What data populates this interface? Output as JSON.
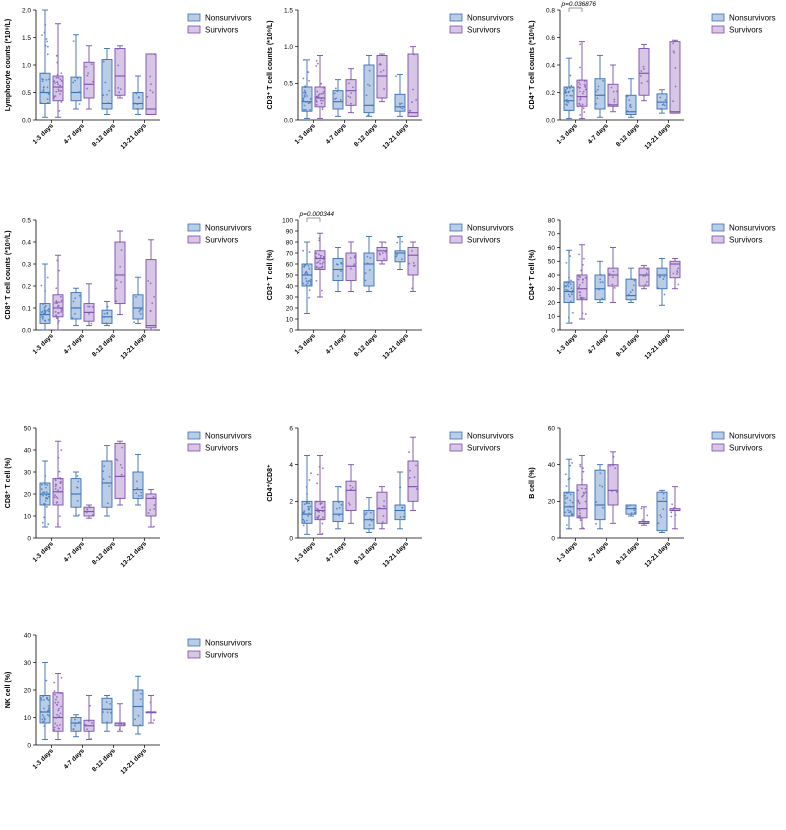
{
  "legend": {
    "nonsurvivors": "Nonsurvivors",
    "survivors": "Survivors"
  },
  "colors": {
    "nonsurvivors_fill": "#b9cde6",
    "nonsurvivors_line": "#3a6fb0",
    "nonsurvivors_dot": "#4a7ec2",
    "survivors_fill": "#d7c6e6",
    "survivors_line": "#7a4fa8",
    "survivors_dot": "#8a62b8"
  },
  "chart_data": [
    {
      "type": "box",
      "ylabel": "Lymphocyte counts (*10⁹/L)",
      "categories": [
        "1-3 days",
        "4-7 days",
        "8-12 days",
        "13-21 days"
      ],
      "ylim": [
        0,
        2
      ],
      "yticks": [
        0,
        0.5,
        1.0,
        1.5,
        2.0
      ],
      "ytick_labels": [
        "0.0",
        "0.5",
        "1.0",
        "1.5",
        "2.0"
      ],
      "annotation": "",
      "series": [
        {
          "name": "Nonsurvivors",
          "boxes": [
            {
              "min": 0.05,
              "q1": 0.3,
              "median": 0.5,
              "q3": 0.85,
              "max": 2.0
            },
            {
              "min": 0.2,
              "q1": 0.35,
              "median": 0.5,
              "q3": 0.78,
              "max": 1.55
            },
            {
              "min": 0.1,
              "q1": 0.2,
              "median": 0.3,
              "q3": 1.1,
              "max": 1.3
            },
            {
              "min": 0.1,
              "q1": 0.2,
              "median": 0.3,
              "q3": 0.5,
              "max": 0.8
            }
          ]
        },
        {
          "name": "Survivors",
          "boxes": [
            {
              "min": 0.05,
              "q1": 0.35,
              "median": 0.6,
              "q3": 0.8,
              "max": 1.75
            },
            {
              "min": 0.2,
              "q1": 0.4,
              "median": 0.65,
              "q3": 1.05,
              "max": 1.35
            },
            {
              "min": 0.4,
              "q1": 0.45,
              "median": 0.8,
              "q3": 1.3,
              "max": 1.35
            },
            {
              "min": 0.1,
              "q1": 0.1,
              "median": 0.2,
              "q3": 1.2,
              "max": 1.2
            }
          ]
        }
      ]
    },
    {
      "type": "box",
      "ylabel": "CD3⁺ T cell counts (*10⁹/L)",
      "categories": [
        "1-3 days",
        "4-7 days",
        "8-12 days",
        "13-21 days"
      ],
      "ylim": [
        0,
        1.5
      ],
      "yticks": [
        0,
        0.5,
        1.0,
        1.5
      ],
      "ytick_labels": [
        "0.0",
        "0.5",
        "1.0",
        "1.5"
      ],
      "annotation": "",
      "series": [
        {
          "name": "Nonsurvivors",
          "boxes": [
            {
              "min": 0.02,
              "q1": 0.12,
              "median": 0.25,
              "q3": 0.45,
              "max": 0.82
            },
            {
              "min": 0.05,
              "q1": 0.15,
              "median": 0.25,
              "q3": 0.4,
              "max": 0.55
            },
            {
              "min": 0.05,
              "q1": 0.1,
              "median": 0.2,
              "q3": 0.75,
              "max": 0.88
            },
            {
              "min": 0.05,
              "q1": 0.12,
              "median": 0.18,
              "q3": 0.35,
              "max": 0.62
            }
          ]
        },
        {
          "name": "Survivors",
          "boxes": [
            {
              "min": 0.02,
              "q1": 0.18,
              "median": 0.3,
              "q3": 0.45,
              "max": 0.88
            },
            {
              "min": 0.1,
              "q1": 0.2,
              "median": 0.4,
              "q3": 0.55,
              "max": 0.7
            },
            {
              "min": 0.25,
              "q1": 0.3,
              "median": 0.6,
              "q3": 0.88,
              "max": 0.9
            },
            {
              "min": 0.05,
              "q1": 0.05,
              "median": 0.1,
              "q3": 0.9,
              "max": 1.0
            }
          ]
        }
      ]
    },
    {
      "type": "box",
      "ylabel": "CD4⁺ T cell counts (*10⁹/L)",
      "categories": [
        "1-3 days",
        "4-7 days",
        "8-12 days",
        "13-21 days"
      ],
      "ylim": [
        0,
        0.8
      ],
      "yticks": [
        0,
        0.2,
        0.4,
        0.6,
        0.8
      ],
      "ytick_labels": [
        "0.0",
        "0.2",
        "0.4",
        "0.6",
        "0.8"
      ],
      "annotation": "p=0.036876",
      "series": [
        {
          "name": "Nonsurvivors",
          "boxes": [
            {
              "min": 0.01,
              "q1": 0.07,
              "median": 0.14,
              "q3": 0.24,
              "max": 0.45
            },
            {
              "min": 0.02,
              "q1": 0.08,
              "median": 0.18,
              "q3": 0.3,
              "max": 0.47
            },
            {
              "min": 0.02,
              "q1": 0.04,
              "median": 0.06,
              "q3": 0.18,
              "max": 0.3
            },
            {
              "min": 0.05,
              "q1": 0.08,
              "median": 0.13,
              "q3": 0.19,
              "max": 0.22
            }
          ]
        },
        {
          "name": "Survivors",
          "boxes": [
            {
              "min": 0.01,
              "q1": 0.1,
              "median": 0.17,
              "q3": 0.29,
              "max": 0.57
            },
            {
              "min": 0.06,
              "q1": 0.1,
              "median": 0.11,
              "q3": 0.26,
              "max": 0.4
            },
            {
              "min": 0.14,
              "q1": 0.18,
              "median": 0.34,
              "q3": 0.52,
              "max": 0.55
            },
            {
              "min": 0.05,
              "q1": 0.05,
              "median": 0.06,
              "q3": 0.57,
              "max": 0.58
            }
          ]
        }
      ]
    },
    {
      "type": "box",
      "ylabel": "CD8⁺ T cell counts (*10⁹/L)",
      "categories": [
        "1-3 days",
        "4-7 days",
        "8-12 days",
        "13-21 days"
      ],
      "ylim": [
        0,
        0.5
      ],
      "yticks": [
        0,
        0.1,
        0.2,
        0.3,
        0.4,
        0.5
      ],
      "ytick_labels": [
        "0.0",
        "0.1",
        "0.2",
        "0.3",
        "0.4",
        "0.5"
      ],
      "annotation": "",
      "series": [
        {
          "name": "Nonsurvivors",
          "boxes": [
            {
              "min": 0.0,
              "q1": 0.03,
              "median": 0.07,
              "q3": 0.12,
              "max": 0.3
            },
            {
              "min": 0.02,
              "q1": 0.05,
              "median": 0.1,
              "q3": 0.17,
              "max": 0.19
            },
            {
              "min": 0.02,
              "q1": 0.03,
              "median": 0.06,
              "q3": 0.09,
              "max": 0.13
            },
            {
              "min": 0.03,
              "q1": 0.05,
              "median": 0.1,
              "q3": 0.16,
              "max": 0.24
            }
          ]
        },
        {
          "name": "Survivors",
          "boxes": [
            {
              "min": 0.0,
              "q1": 0.06,
              "median": 0.1,
              "q3": 0.16,
              "max": 0.34
            },
            {
              "min": 0.02,
              "q1": 0.04,
              "median": 0.08,
              "q3": 0.12,
              "max": 0.21
            },
            {
              "min": 0.07,
              "q1": 0.12,
              "median": 0.25,
              "q3": 0.4,
              "max": 0.45
            },
            {
              "min": 0.0,
              "q1": 0.01,
              "median": 0.02,
              "q3": 0.32,
              "max": 0.41
            }
          ]
        }
      ]
    },
    {
      "type": "box",
      "ylabel": "CD3⁺ T cell (%)",
      "categories": [
        "1-3 days",
        "4-7 days",
        "8-12 days",
        "13-21 days"
      ],
      "ylim": [
        0,
        100
      ],
      "yticks": [
        0,
        10,
        20,
        30,
        40,
        50,
        60,
        70,
        80,
        90,
        100
      ],
      "ytick_labels": [
        "0",
        "10",
        "20",
        "30",
        "40",
        "50",
        "60",
        "70",
        "80",
        "90",
        "100"
      ],
      "annotation": "p=0.000344",
      "series": [
        {
          "name": "Nonsurvivors",
          "boxes": [
            {
              "min": 15,
              "q1": 40,
              "median": 50,
              "q3": 60,
              "max": 80
            },
            {
              "min": 35,
              "q1": 45,
              "median": 55,
              "q3": 65,
              "max": 75
            },
            {
              "min": 35,
              "q1": 40,
              "median": 60,
              "q3": 70,
              "max": 85
            },
            {
              "min": 55,
              "q1": 62,
              "median": 70,
              "q3": 72,
              "max": 85
            }
          ]
        },
        {
          "name": "Survivors",
          "boxes": [
            {
              "min": 30,
              "q1": 55,
              "median": 65,
              "q3": 72,
              "max": 88
            },
            {
              "min": 35,
              "q1": 45,
              "median": 58,
              "q3": 70,
              "max": 80
            },
            {
              "min": 60,
              "q1": 63,
              "median": 72,
              "q3": 75,
              "max": 80
            },
            {
              "min": 35,
              "q1": 50,
              "median": 68,
              "q3": 75,
              "max": 80
            }
          ]
        }
      ]
    },
    {
      "type": "box",
      "ylabel": "CD4⁺ T cell (%)",
      "categories": [
        "1-3 days",
        "4-7 days",
        "8-12 days",
        "13-21 days"
      ],
      "ylim": [
        0,
        80
      ],
      "yticks": [
        0,
        10,
        20,
        30,
        40,
        50,
        60,
        70,
        80
      ],
      "ytick_labels": [
        "0",
        "10",
        "20",
        "30",
        "40",
        "50",
        "60",
        "70",
        "80"
      ],
      "annotation": "",
      "series": [
        {
          "name": "Nonsurvivors",
          "boxes": [
            {
              "min": 5,
              "q1": 20,
              "median": 28,
              "q3": 35,
              "max": 58
            },
            {
              "min": 20,
              "q1": 22,
              "median": 30,
              "q3": 40,
              "max": 50
            },
            {
              "min": 20,
              "q1": 22,
              "median": 25,
              "q3": 37,
              "max": 45
            },
            {
              "min": 18,
              "q1": 30,
              "median": 40,
              "q3": 45,
              "max": 52
            }
          ]
        },
        {
          "name": "Survivors",
          "boxes": [
            {
              "min": 8,
              "q1": 22,
              "median": 30,
              "q3": 40,
              "max": 62
            },
            {
              "min": 20,
              "q1": 32,
              "median": 40,
              "q3": 45,
              "max": 60
            },
            {
              "min": 30,
              "q1": 32,
              "median": 40,
              "q3": 45,
              "max": 47
            },
            {
              "min": 30,
              "q1": 38,
              "median": 48,
              "q3": 50,
              "max": 52
            }
          ]
        }
      ]
    },
    {
      "type": "box",
      "ylabel": "CD8⁺ T cell (%)",
      "categories": [
        "1-3 days",
        "4-7 days",
        "8-12 days",
        "13-21 days"
      ],
      "ylim": [
        0,
        50
      ],
      "yticks": [
        0,
        10,
        20,
        30,
        40,
        50
      ],
      "ytick_labels": [
        "0",
        "10",
        "20",
        "30",
        "40",
        "50"
      ],
      "annotation": "",
      "series": [
        {
          "name": "Nonsurvivors",
          "boxes": [
            {
              "min": 5,
              "q1": 15,
              "median": 20,
              "q3": 25,
              "max": 35
            },
            {
              "min": 10,
              "q1": 14,
              "median": 20,
              "q3": 27,
              "max": 30
            },
            {
              "min": 10,
              "q1": 14,
              "median": 25,
              "q3": 35,
              "max": 42
            },
            {
              "min": 15,
              "q1": 18,
              "median": 22,
              "q3": 30,
              "max": 38
            }
          ]
        },
        {
          "name": "Survivors",
          "boxes": [
            {
              "min": 5,
              "q1": 15,
              "median": 21,
              "q3": 27,
              "max": 44
            },
            {
              "min": 9,
              "q1": 10,
              "median": 12,
              "q3": 14,
              "max": 15
            },
            {
              "min": 15,
              "q1": 18,
              "median": 28,
              "q3": 43,
              "max": 44
            },
            {
              "min": 5,
              "q1": 10,
              "median": 18,
              "q3": 20,
              "max": 22
            }
          ]
        }
      ]
    },
    {
      "type": "box",
      "ylabel": "CD4⁺/CD8⁺",
      "categories": [
        "1-3 days",
        "4-7 days",
        "8-12 days",
        "13-21 days"
      ],
      "ylim": [
        0,
        6
      ],
      "yticks": [
        0,
        2,
        4,
        6
      ],
      "ytick_labels": [
        "0",
        "2",
        "4",
        "6"
      ],
      "annotation": "",
      "series": [
        {
          "name": "Nonsurvivors",
          "boxes": [
            {
              "min": 0.2,
              "q1": 0.8,
              "median": 1.3,
              "q3": 2.0,
              "max": 4.5
            },
            {
              "min": 0.5,
              "q1": 0.9,
              "median": 1.3,
              "q3": 2.0,
              "max": 2.8
            },
            {
              "min": 0.3,
              "q1": 0.5,
              "median": 1.0,
              "q3": 1.5,
              "max": 2.2
            },
            {
              "min": 0.5,
              "q1": 1.0,
              "median": 1.5,
              "q3": 1.8,
              "max": 3.6
            }
          ]
        },
        {
          "name": "Survivors",
          "boxes": [
            {
              "min": 0.2,
              "q1": 1.0,
              "median": 1.5,
              "q3": 2.0,
              "max": 4.5
            },
            {
              "min": 0.8,
              "q1": 1.5,
              "median": 2.6,
              "q3": 3.1,
              "max": 4.0
            },
            {
              "min": 0.5,
              "q1": 0.8,
              "median": 1.6,
              "q3": 2.5,
              "max": 2.8
            },
            {
              "min": 1.5,
              "q1": 2.0,
              "median": 2.8,
              "q3": 4.2,
              "max": 5.5
            }
          ]
        }
      ]
    },
    {
      "type": "box",
      "ylabel": "B cell (%)",
      "categories": [
        "1-3 days",
        "4-7 days",
        "8-12 days",
        "13-21 days"
      ],
      "ylim": [
        0,
        60
      ],
      "yticks": [
        0,
        20,
        40,
        60
      ],
      "ytick_labels": [
        "0",
        "20",
        "40",
        "60"
      ],
      "annotation": "",
      "series": [
        {
          "name": "Nonsurvivors",
          "boxes": [
            {
              "min": 5,
              "q1": 12,
              "median": 17,
              "q3": 25,
              "max": 43
            },
            {
              "min": 5,
              "q1": 10,
              "median": 18,
              "q3": 37,
              "max": 40
            },
            {
              "min": 12,
              "q1": 13,
              "median": 16,
              "q3": 18,
              "max": 18
            },
            {
              "min": 3,
              "q1": 4,
              "median": 20,
              "q3": 25,
              "max": 26
            }
          ]
        },
        {
          "name": "Survivors",
          "boxes": [
            {
              "min": 5,
              "q1": 11,
              "median": 16,
              "q3": 29,
              "max": 45
            },
            {
              "min": 8,
              "q1": 18,
              "median": 26,
              "q3": 40,
              "max": 47
            },
            {
              "min": 7,
              "q1": 8,
              "median": 8,
              "q3": 9,
              "max": 17
            },
            {
              "min": 5,
              "q1": 15,
              "median": 15,
              "q3": 16,
              "max": 28
            }
          ]
        }
      ]
    },
    {
      "type": "box",
      "ylabel": "NK cell (%)",
      "categories": [
        "1-3 days",
        "4-7 days",
        "8-12 days",
        "13-21 days"
      ],
      "ylim": [
        0,
        40
      ],
      "yticks": [
        0,
        10,
        20,
        30,
        40
      ],
      "ytick_labels": [
        "0",
        "10",
        "20",
        "30",
        "40"
      ],
      "annotation": "",
      "series": [
        {
          "name": "Nonsurvivors",
          "boxes": [
            {
              "min": 2,
              "q1": 8,
              "median": 12,
              "q3": 18,
              "max": 30
            },
            {
              "min": 3,
              "q1": 5,
              "median": 8,
              "q3": 10,
              "max": 11
            },
            {
              "min": 5,
              "q1": 8,
              "median": 13,
              "q3": 17,
              "max": 18
            },
            {
              "min": 4,
              "q1": 7,
              "median": 14,
              "q3": 20,
              "max": 25
            }
          ]
        },
        {
          "name": "Survivors",
          "boxes": [
            {
              "min": 2,
              "q1": 5,
              "median": 10,
              "q3": 19,
              "max": 26
            },
            {
              "min": 2,
              "q1": 5,
              "median": 7,
              "q3": 9,
              "max": 18
            },
            {
              "min": 5,
              "q1": 7,
              "median": 8,
              "q3": 8,
              "max": 15
            },
            {
              "min": 8,
              "q1": 12,
              "median": 12,
              "q3": 12,
              "max": 18
            }
          ]
        }
      ]
    }
  ]
}
